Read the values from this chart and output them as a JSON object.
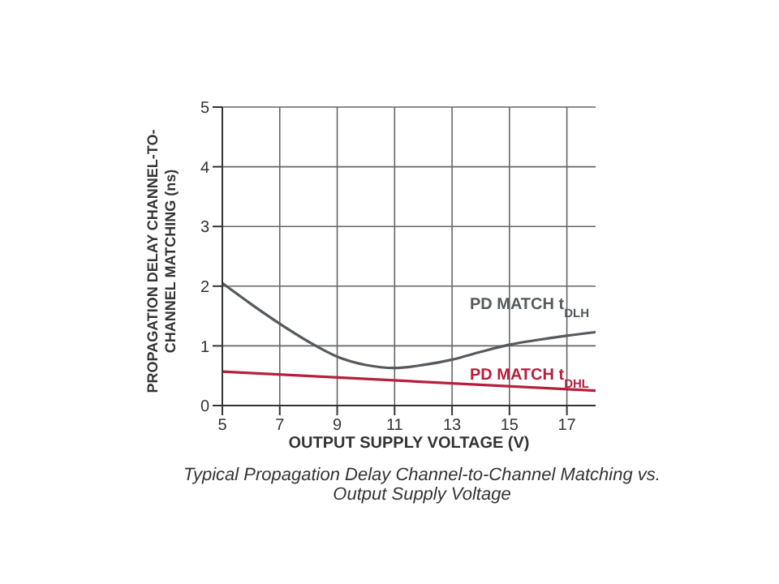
{
  "chart_data": {
    "type": "line",
    "title": "Typical Propagation Delay Channel-to-Channel Matching vs. Output Supply Voltage",
    "xlabel": "OUTPUT SUPPLY VOLTAGE (V)",
    "ylabel": "PROPAGATION DELAY CHANNEL-TO-CHANNEL MATCHING (ns)",
    "series": [
      {
        "name": "PD MATCH t$_{DLH}$",
        "color": "#555a5e",
        "x": [
          5,
          6,
          7,
          8,
          9,
          10,
          11,
          12,
          13,
          14,
          15,
          16,
          17,
          18
        ],
        "values": [
          2.05,
          1.7,
          1.37,
          1.07,
          0.82,
          0.68,
          0.63,
          0.68,
          0.77,
          0.9,
          1.02,
          1.1,
          1.17,
          1.23
        ]
      },
      {
        "name": "PD MATCH t$_{DHL}$",
        "color": "#b5203e",
        "x": [
          5,
          18
        ],
        "values": [
          0.57,
          0.25
        ]
      }
    ],
    "xlim": [
      5,
      18
    ],
    "xticks": [
      5,
      7,
      9,
      11,
      13,
      15,
      17
    ],
    "ylim": [
      0,
      5
    ],
    "yticks": [
      0,
      1,
      2,
      3,
      4,
      5
    ],
    "grid": true,
    "legend": false,
    "marker": "none",
    "line_style": "solid"
  }
}
